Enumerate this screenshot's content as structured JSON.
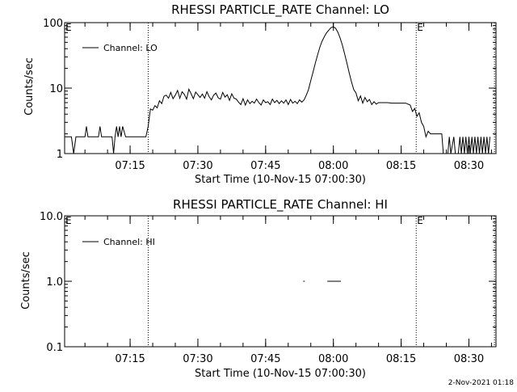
{
  "footer_timestamp": "2-Nov-2021 01:18",
  "colors": {
    "foreground": "#000000",
    "background": "#ffffff"
  },
  "chart_data": [
    {
      "type": "line",
      "title": "RHESSI PARTICLE_RATE Channel: LO",
      "xlabel": "Start Time (10-Nov-15 07:00:30)",
      "ylabel": "Counts/sec",
      "y_scale": "log",
      "ylim": [
        1,
        100
      ],
      "yticks": [
        {
          "value": 1,
          "label": "1"
        },
        {
          "value": 10,
          "label": "10"
        },
        {
          "value": 100,
          "label": "100"
        }
      ],
      "xlim": [
        "07:00:30",
        "08:36:00"
      ],
      "xticks": [
        "07:15",
        "07:30",
        "07:45",
        "08:00",
        "08:15",
        "08:30"
      ],
      "grid": false,
      "legend": {
        "position": "top-left",
        "label": "Channel: LO"
      },
      "markers": [
        {
          "time": "07:19:00",
          "label": ""
        },
        {
          "time": "08:18:20",
          "label": "E"
        },
        {
          "time": "08:35:40",
          "label": ""
        }
      ],
      "corner_marks": [
        "E"
      ],
      "series": [
        {
          "name": "Channel: LO",
          "points": [
            [
              "07:00:30",
              1.8
            ],
            [
              "07:02:00",
              1.8
            ],
            [
              "07:02:30",
              1.0
            ],
            [
              "07:03:00",
              1.8
            ],
            [
              "07:05:00",
              1.8
            ],
            [
              "07:05:20",
              2.6
            ],
            [
              "07:05:40",
              1.8
            ],
            [
              "07:08:00",
              1.8
            ],
            [
              "07:08:20",
              2.6
            ],
            [
              "07:08:40",
              1.8
            ],
            [
              "07:11:00",
              1.8
            ],
            [
              "07:11:20",
              1.0
            ],
            [
              "07:11:40",
              1.8
            ],
            [
              "07:12:00",
              2.6
            ],
            [
              "07:12:20",
              1.8
            ],
            [
              "07:12:40",
              2.6
            ],
            [
              "07:13:00",
              1.8
            ],
            [
              "07:13:20",
              2.6
            ],
            [
              "07:14:00",
              1.8
            ],
            [
              "07:18:30",
              1.8
            ],
            [
              "07:19:00",
              2.6
            ],
            [
              "07:19:30",
              4.8
            ],
            [
              "07:20:00",
              4.6
            ],
            [
              "07:20:30",
              5.4
            ],
            [
              "07:21:00",
              5.0
            ],
            [
              "07:21:30",
              6.4
            ],
            [
              "07:22:00",
              5.8
            ],
            [
              "07:22:30",
              7.5
            ],
            [
              "07:23:00",
              7.8
            ],
            [
              "07:23:30",
              7.0
            ],
            [
              "07:24:00",
              8.6
            ],
            [
              "07:24:30",
              6.9
            ],
            [
              "07:25:00",
              7.8
            ],
            [
              "07:25:30",
              9.2
            ],
            [
              "07:26:00",
              7.0
            ],
            [
              "07:26:30",
              8.8
            ],
            [
              "07:27:00",
              8.0
            ],
            [
              "07:27:30",
              6.8
            ],
            [
              "07:28:00",
              9.6
            ],
            [
              "07:28:30",
              8.2
            ],
            [
              "07:29:00",
              6.9
            ],
            [
              "07:29:30",
              8.7
            ],
            [
              "07:30:00",
              7.9
            ],
            [
              "07:30:30",
              7.2
            ],
            [
              "07:31:00",
              8.1
            ],
            [
              "07:31:30",
              7.0
            ],
            [
              "07:32:00",
              8.8
            ],
            [
              "07:32:30",
              7.4
            ],
            [
              "07:33:00",
              6.6
            ],
            [
              "07:33:30",
              7.8
            ],
            [
              "07:34:00",
              8.4
            ],
            [
              "07:34:30",
              7.1
            ],
            [
              "07:35:00",
              6.8
            ],
            [
              "07:35:30",
              8.6
            ],
            [
              "07:36:00",
              7.3
            ],
            [
              "07:36:30",
              7.9
            ],
            [
              "07:37:00",
              6.5
            ],
            [
              "07:37:30",
              8.2
            ],
            [
              "07:38:00",
              7.0
            ],
            [
              "07:38:30",
              6.8
            ],
            [
              "07:39:00",
              6.1
            ],
            [
              "07:39:30",
              5.6
            ],
            [
              "07:40:00",
              6.9
            ],
            [
              "07:40:30",
              5.5
            ],
            [
              "07:41:00",
              6.6
            ],
            [
              "07:41:30",
              5.8
            ],
            [
              "07:42:00",
              6.3
            ],
            [
              "07:42:30",
              5.9
            ],
            [
              "07:43:00",
              6.8
            ],
            [
              "07:43:30",
              6.0
            ],
            [
              "07:44:00",
              5.5
            ],
            [
              "07:44:30",
              6.6
            ],
            [
              "07:45:00",
              6.0
            ],
            [
              "07:45:30",
              6.2
            ],
            [
              "07:46:00",
              5.6
            ],
            [
              "07:46:30",
              6.8
            ],
            [
              "07:47:00",
              6.0
            ],
            [
              "07:47:30",
              6.5
            ],
            [
              "07:48:00",
              5.8
            ],
            [
              "07:48:30",
              6.4
            ],
            [
              "07:49:00",
              5.9
            ],
            [
              "07:49:30",
              6.6
            ],
            [
              "07:50:00",
              5.6
            ],
            [
              "07:50:30",
              6.7
            ],
            [
              "07:51:00",
              5.9
            ],
            [
              "07:51:30",
              6.3
            ],
            [
              "07:52:00",
              5.8
            ],
            [
              "07:52:30",
              6.6
            ],
            [
              "07:53:00",
              6.1
            ],
            [
              "07:53:30",
              6.6
            ],
            [
              "07:54:00",
              7.8
            ],
            [
              "07:54:30",
              9.5
            ],
            [
              "07:55:00",
              13
            ],
            [
              "07:55:30",
              17.5
            ],
            [
              "07:56:00",
              24
            ],
            [
              "07:56:30",
              32
            ],
            [
              "07:57:00",
              42
            ],
            [
              "07:57:30",
              52
            ],
            [
              "07:58:00",
              61
            ],
            [
              "07:58:30",
              70
            ],
            [
              "07:59:00",
              77
            ],
            [
              "07:59:30",
              84
            ],
            [
              "08:00:00",
              86
            ],
            [
              "08:00:30",
              82
            ],
            [
              "08:01:00",
              71
            ],
            [
              "08:01:30",
              58
            ],
            [
              "08:02:00",
              45
            ],
            [
              "08:02:30",
              33
            ],
            [
              "08:03:00",
              24
            ],
            [
              "08:03:30",
              17
            ],
            [
              "08:04:00",
              12.5
            ],
            [
              "08:04:30",
              9.5
            ],
            [
              "08:05:00",
              8.4
            ],
            [
              "08:05:30",
              6.4
            ],
            [
              "08:06:00",
              7.6
            ],
            [
              "08:06:30",
              5.9
            ],
            [
              "08:07:00",
              7.2
            ],
            [
              "08:07:30",
              6.2
            ],
            [
              "08:08:00",
              6.7
            ],
            [
              "08:08:30",
              5.6
            ],
            [
              "08:09:00",
              6.2
            ],
            [
              "08:09:30",
              5.7
            ],
            [
              "08:10:00",
              6.0
            ],
            [
              "08:12:00",
              6.0
            ],
            [
              "08:13:00",
              5.9
            ],
            [
              "08:16:00",
              5.9
            ],
            [
              "08:17:00",
              5.5
            ],
            [
              "08:17:30",
              4.4
            ],
            [
              "08:18:00",
              4.9
            ],
            [
              "08:18:30",
              3.7
            ],
            [
              "08:19:00",
              4.2
            ],
            [
              "08:19:30",
              3.0
            ],
            [
              "08:20:00",
              2.6
            ],
            [
              "08:20:30",
              1.8
            ],
            [
              "08:21:00",
              2.2
            ],
            [
              "08:21:30",
              2.0
            ],
            [
              "08:24:00",
              2.0
            ],
            [
              "08:24:20",
              1.0
            ],
            [
              "08:25:20",
              1.0
            ],
            [
              "08:25:40",
              1.8
            ],
            [
              "08:26:00",
              1.0
            ],
            [
              "08:26:40",
              1.8
            ],
            [
              "08:27:00",
              1.0
            ],
            [
              "08:27:40",
              1.0
            ],
            [
              "08:28:00",
              1.8
            ],
            [
              "08:28:20",
              1.0
            ],
            [
              "08:28:40",
              1.8
            ],
            [
              "08:29:00",
              1.0
            ],
            [
              "08:29:20",
              1.8
            ],
            [
              "08:29:40",
              1.0
            ],
            [
              "08:30:00",
              1.8
            ],
            [
              "08:30:20",
              1.0
            ],
            [
              "08:30:40",
              1.8
            ],
            [
              "08:31:00",
              1.0
            ],
            [
              "08:31:20",
              1.8
            ],
            [
              "08:31:40",
              1.0
            ],
            [
              "08:32:00",
              1.8
            ],
            [
              "08:32:20",
              1.0
            ],
            [
              "08:32:40",
              1.8
            ],
            [
              "08:33:00",
              1.0
            ],
            [
              "08:33:20",
              1.8
            ],
            [
              "08:33:40",
              1.0
            ],
            [
              "08:34:00",
              1.8
            ],
            [
              "08:34:20",
              1.0
            ],
            [
              "08:34:40",
              1.8
            ]
          ]
        }
      ]
    },
    {
      "type": "line",
      "title": "RHESSI PARTICLE_RATE Channel: HI",
      "xlabel": "Start Time (10-Nov-15 07:00:30)",
      "ylabel": "Counts/sec",
      "y_scale": "log",
      "ylim": [
        0.1,
        10
      ],
      "yticks": [
        {
          "value": 0.1,
          "label": "0.1"
        },
        {
          "value": 1,
          "label": "1.0"
        },
        {
          "value": 10,
          "label": "10.0"
        }
      ],
      "xlim": [
        "07:00:30",
        "08:36:00"
      ],
      "xticks": [
        "07:15",
        "07:30",
        "07:45",
        "08:00",
        "08:15",
        "08:30"
      ],
      "grid": false,
      "legend": {
        "position": "top-left",
        "label": "Channel: HI"
      },
      "markers": [
        {
          "time": "07:19:00",
          "label": ""
        },
        {
          "time": "08:18:20",
          "label": "E"
        },
        {
          "time": "08:35:40",
          "label": ""
        }
      ],
      "corner_marks": [
        "E"
      ],
      "series": [
        {
          "name": "Channel: HI",
          "segments": [
            [
              [
                "07:53:20",
                1.0
              ],
              [
                "07:53:40",
                1.0
              ]
            ],
            [
              [
                "07:58:40",
                1.0
              ],
              [
                "08:01:40",
                1.0
              ]
            ]
          ]
        }
      ]
    }
  ]
}
